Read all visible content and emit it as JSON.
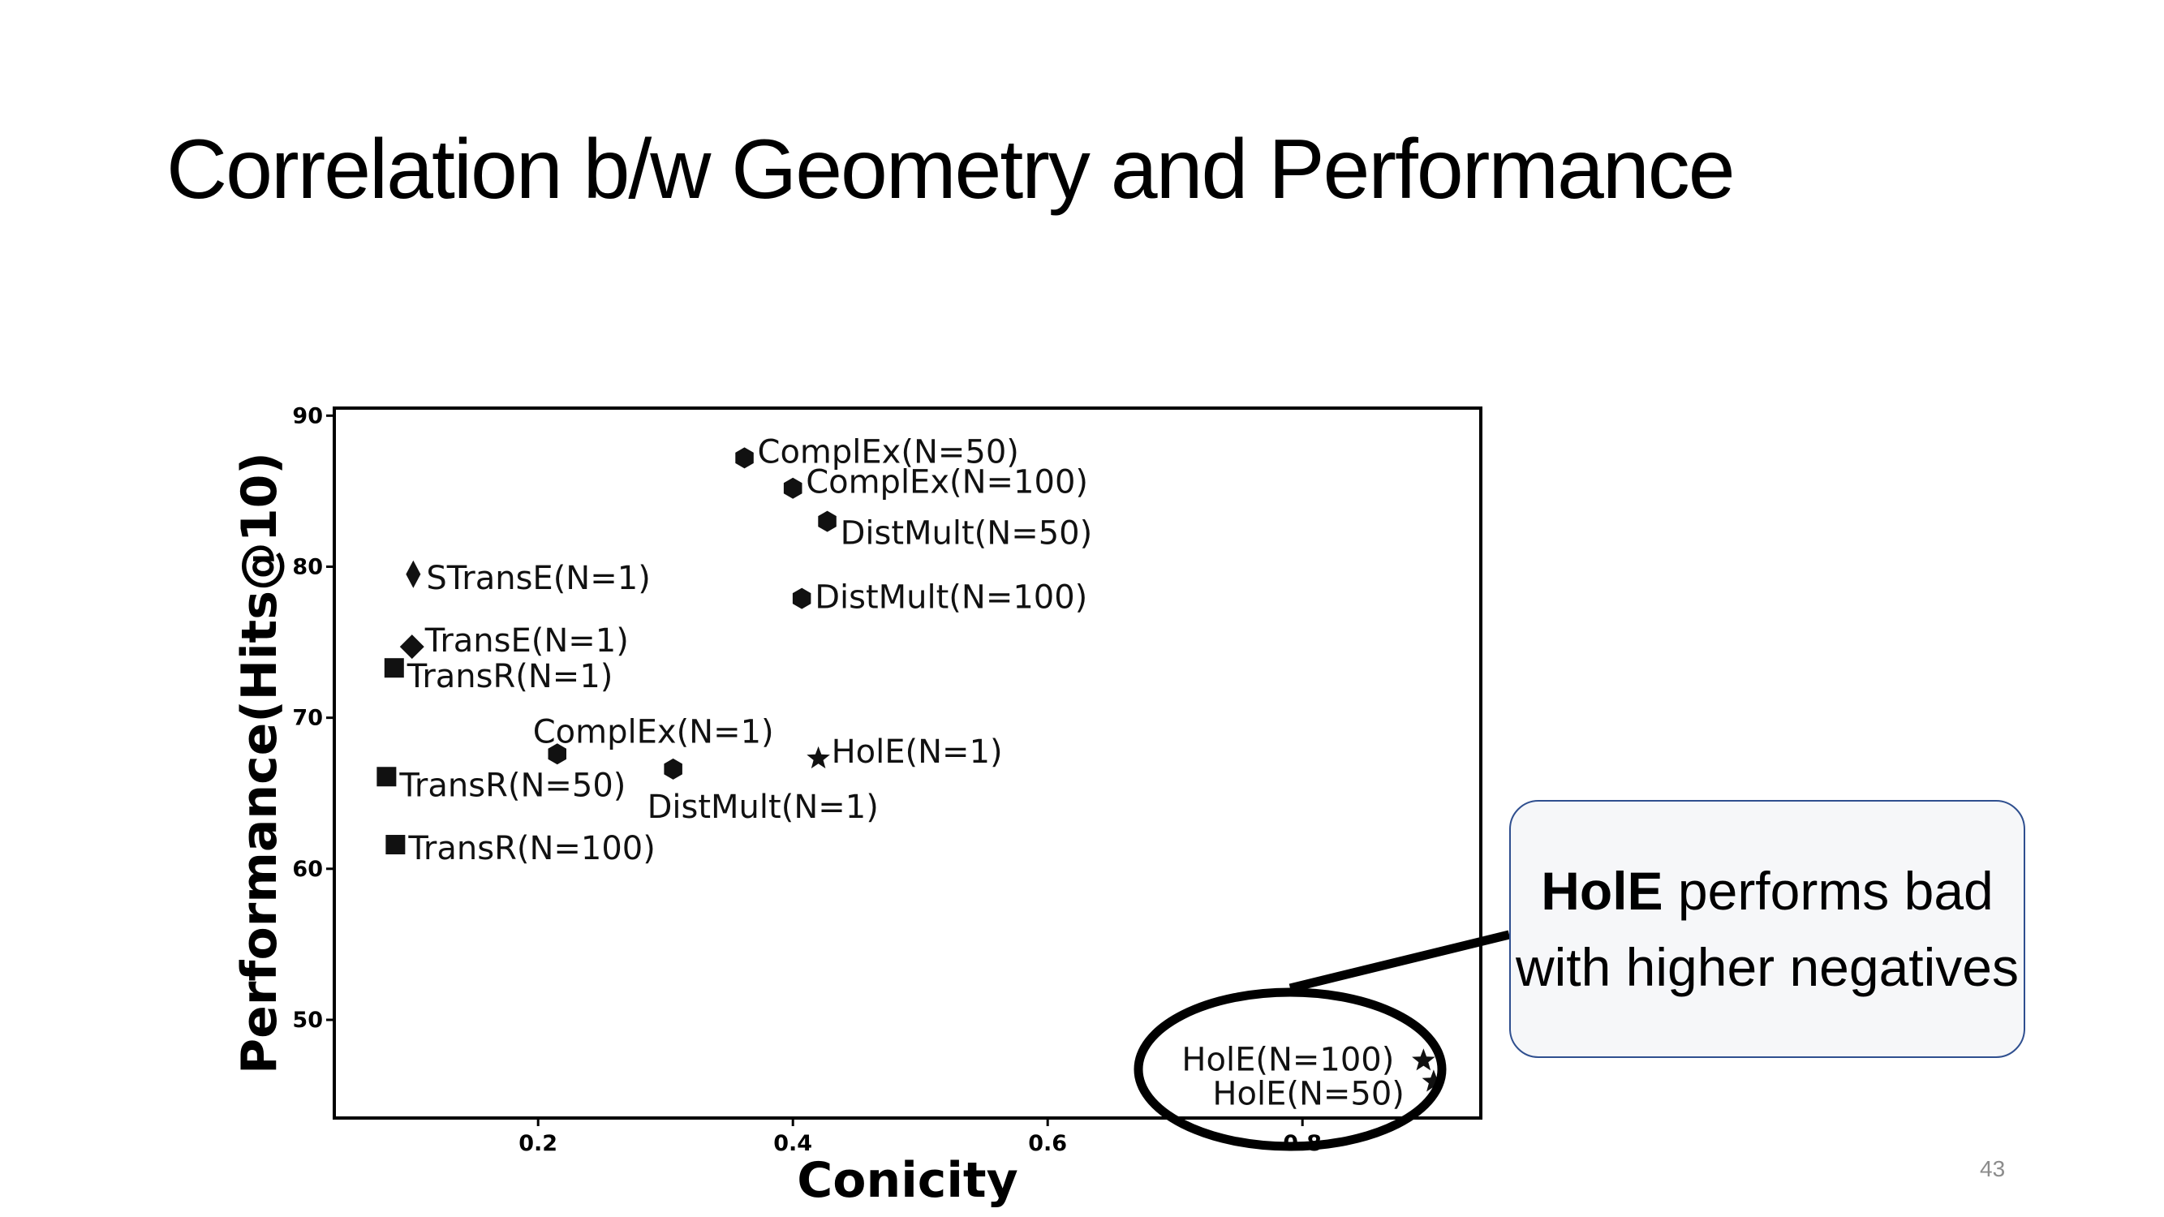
{
  "slide": {
    "title": "Correlation b/w Geometry and Performance",
    "page_number": "43"
  },
  "callout": {
    "bold_text": "HolE",
    "text": " performs bad with higher negatives",
    "border_color": "#2f4f8f",
    "fill_color": "#f6f7f9"
  },
  "chart_data": {
    "type": "scatter",
    "title": "",
    "xlabel": "Conicity",
    "ylabel": "Performance(Hits@10)",
    "xlim": [
      0.04,
      0.94
    ],
    "ylim": [
      43.5,
      90.5
    ],
    "xticks": [
      0.2,
      0.4,
      0.6,
      0.8
    ],
    "yticks": [
      50,
      60,
      70,
      80,
      90
    ],
    "grid": false,
    "legend": "none",
    "series": [
      {
        "marker": "hexagon",
        "points": [
          {
            "label": "ComplEx(N=50)",
            "x": 0.362,
            "y": 87.2
          },
          {
            "label": "ComplEx(N=100)",
            "x": 0.4,
            "y": 85.2
          },
          {
            "label": "ComplEx(N=1)",
            "x": 0.215,
            "y": 67.6
          }
        ]
      },
      {
        "marker": "hexagon",
        "points": [
          {
            "label": "DistMult(N=50)",
            "x": 0.427,
            "y": 83.0
          },
          {
            "label": "DistMult(N=100)",
            "x": 0.407,
            "y": 77.9
          },
          {
            "label": "DistMult(N=1)",
            "x": 0.306,
            "y": 66.6
          }
        ]
      },
      {
        "marker": "thin-diamond",
        "points": [
          {
            "label": "STransE(N=1)",
            "x": 0.102,
            "y": 79.5
          }
        ]
      },
      {
        "marker": "diamond",
        "points": [
          {
            "label": "TransE(N=1)",
            "x": 0.101,
            "y": 74.7
          }
        ]
      },
      {
        "marker": "square",
        "points": [
          {
            "label": "TransR(N=1)",
            "x": 0.087,
            "y": 73.3
          },
          {
            "label": "TransR(N=50)",
            "x": 0.081,
            "y": 66.1
          },
          {
            "label": "TransR(N=100)",
            "x": 0.088,
            "y": 61.6
          }
        ]
      },
      {
        "marker": "star",
        "points": [
          {
            "label": "HolE(N=1)",
            "x": 0.42,
            "y": 67.3
          },
          {
            "label": "HolE(N=100)",
            "x": 0.895,
            "y": 47.3
          },
          {
            "label": "HolE(N=50)",
            "x": 0.903,
            "y": 45.9
          }
        ]
      }
    ],
    "annotation": {
      "shape": "ellipse",
      "around": [
        "HolE(N=100)",
        "HolE(N=50)"
      ]
    },
    "marker_color": "#111111"
  }
}
